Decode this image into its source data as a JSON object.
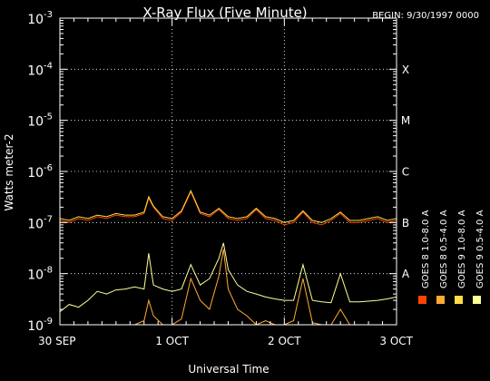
{
  "chart_data": {
    "type": "line",
    "title": "X-Ray Flux (Five Minute)",
    "begin_label": "BEGIN: 9/30/1997 0000",
    "xlabel": "Universal Time",
    "ylabel": "Watts meter-2",
    "x_unit": "hours since BEGIN",
    "xlim": [
      0,
      72
    ],
    "ylim": [
      1e-09,
      0.001
    ],
    "y_scale": "log",
    "x_ticks": [
      {
        "value": 0,
        "label": "30 SEP"
      },
      {
        "value": 24,
        "label": "1 OCT"
      },
      {
        "value": 48,
        "label": "2 OCT"
      },
      {
        "value": 72,
        "label": "3 OCT"
      }
    ],
    "y_ticks": [
      {
        "exp": "-9",
        "value": 1e-09
      },
      {
        "exp": "-8",
        "value": 1e-08
      },
      {
        "exp": "-7",
        "value": 1e-07
      },
      {
        "exp": "-6",
        "value": 1e-06
      },
      {
        "exp": "-5",
        "value": 1e-05
      },
      {
        "exp": "-4",
        "value": 0.0001
      },
      {
        "exp": "-3",
        "value": 0.001
      }
    ],
    "flare_classes": [
      {
        "label": "X",
        "value": 0.0001
      },
      {
        "label": "M",
        "value": 1e-05
      },
      {
        "label": "C",
        "value": 1e-06
      },
      {
        "label": "B",
        "value": 1e-07
      },
      {
        "label": "A",
        "value": 1e-08
      }
    ],
    "grid": {
      "horizontal_at": [
        1e-08,
        1e-07,
        1e-06,
        1e-05,
        0.0001
      ],
      "vertical_at": [
        24,
        48
      ]
    },
    "legend_position": "right-vertical",
    "series": [
      {
        "name": "GOES 8 1.0-8.0 A",
        "color": "#ff4400",
        "x": [
          0,
          2,
          4,
          6,
          8,
          10,
          12,
          14,
          16,
          18,
          19,
          20,
          22,
          24,
          26,
          28,
          30,
          32,
          34,
          36,
          38,
          40,
          42,
          44,
          46,
          48,
          50,
          52,
          54,
          56,
          58,
          60,
          62,
          64,
          66,
          68,
          70,
          72
        ],
        "y": [
          1.1e-07,
          1e-07,
          1.2e-07,
          1.1e-07,
          1.3e-07,
          1.2e-07,
          1.4e-07,
          1.3e-07,
          1.3e-07,
          1.5e-07,
          3e-07,
          2e-07,
          1.2e-07,
          1.1e-07,
          1.6e-07,
          4e-07,
          1.5e-07,
          1.3e-07,
          1.8e-07,
          1.2e-07,
          1.1e-07,
          1.2e-07,
          1.8e-07,
          1.2e-07,
          1.1e-07,
          9e-08,
          1e-07,
          1.6e-07,
          1e-07,
          9e-08,
          1.1e-07,
          1.5e-07,
          1e-07,
          1e-07,
          1.1e-07,
          1.2e-07,
          1e-07,
          1.1e-07
        ]
      },
      {
        "name": "GOES 8 0.5-4.0 A",
        "color": "#ffaa33",
        "x": [
          0,
          4,
          8,
          12,
          16,
          18,
          19,
          20,
          22,
          24,
          26,
          28,
          30,
          32,
          34,
          35,
          36,
          38,
          40,
          42,
          44,
          46,
          48,
          50,
          52,
          54,
          56,
          58,
          60,
          62,
          64,
          66,
          68,
          70,
          72
        ],
        "y": [
          1e-09,
          1e-09,
          1e-09,
          1e-09,
          1e-09,
          1.2e-09,
          3e-09,
          1.5e-09,
          1e-09,
          1e-09,
          1.3e-09,
          8e-09,
          3e-09,
          2e-09,
          9e-09,
          3e-08,
          5e-09,
          2e-09,
          1.5e-09,
          1e-09,
          1.2e-09,
          1e-09,
          1e-09,
          1.2e-09,
          8e-09,
          1.1e-09,
          1e-09,
          1e-09,
          2e-09,
          1e-09,
          1e-09,
          1e-09,
          1e-09,
          1e-09,
          1e-09
        ]
      },
      {
        "name": "GOES 9 1.0-8.0 A",
        "color": "#ffdd44",
        "x": [
          0,
          2,
          4,
          6,
          8,
          10,
          12,
          14,
          16,
          18,
          19,
          20,
          22,
          24,
          26,
          28,
          30,
          32,
          34,
          36,
          38,
          40,
          42,
          44,
          46,
          48,
          50,
          52,
          54,
          56,
          58,
          60,
          62,
          64,
          66,
          68,
          70,
          72
        ],
        "y": [
          1.2e-07,
          1.1e-07,
          1.3e-07,
          1.2e-07,
          1.4e-07,
          1.3e-07,
          1.5e-07,
          1.4e-07,
          1.4e-07,
          1.6e-07,
          3.2e-07,
          2.1e-07,
          1.3e-07,
          1.2e-07,
          1.7e-07,
          4.2e-07,
          1.6e-07,
          1.4e-07,
          1.9e-07,
          1.3e-07,
          1.2e-07,
          1.3e-07,
          1.9e-07,
          1.3e-07,
          1.2e-07,
          1e-07,
          1.1e-07,
          1.7e-07,
          1.1e-07,
          1e-07,
          1.2e-07,
          1.6e-07,
          1.1e-07,
          1.1e-07,
          1.2e-07,
          1.3e-07,
          1.1e-07,
          1.2e-07
        ]
      },
      {
        "name": "GOES 9 0.5-4.0 A",
        "color": "#ffff99",
        "x": [
          0,
          2,
          4,
          6,
          8,
          10,
          12,
          14,
          16,
          18,
          19,
          20,
          22,
          24,
          26,
          28,
          30,
          32,
          34,
          35,
          36,
          38,
          40,
          42,
          44,
          46,
          48,
          50,
          52,
          54,
          56,
          58,
          60,
          62,
          64,
          66,
          68,
          70,
          72
        ],
        "y": [
          1.8e-09,
          2.5e-09,
          2.2e-09,
          3e-09,
          4.5e-09,
          4e-09,
          4.8e-09,
          5e-09,
          5.5e-09,
          5e-09,
          2.5e-08,
          6e-09,
          5e-09,
          4.5e-09,
          5e-09,
          1.5e-08,
          6e-09,
          8e-09,
          2e-08,
          4e-08,
          1.2e-08,
          6e-09,
          4.5e-09,
          4e-09,
          3.5e-09,
          3.2e-09,
          3e-09,
          3e-09,
          1.5e-08,
          3e-09,
          2.8e-09,
          2.7e-09,
          1e-08,
          2.8e-09,
          2.8e-09,
          2.9e-09,
          3e-09,
          3.2e-09,
          3.5e-09
        ]
      }
    ]
  }
}
